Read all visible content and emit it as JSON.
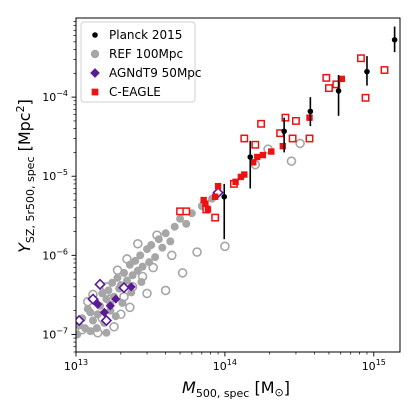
{
  "chart_data": {
    "type": "scatter",
    "xlabel": {
      "main": "M",
      "sub": "500, spec",
      "unit": " [M",
      "unit_sub": "⊙",
      "close": "]"
    },
    "ylabel": {
      "main": "Y",
      "sub": "SZ, 5r500, spec",
      "unit": " [Mpc",
      "sup": "2",
      "close": "]"
    },
    "xscale": "log",
    "yscale": "log",
    "xlim": [
      10000000000000.0,
      1500000000000000.0
    ],
    "ylim": [
      6e-08,
      0.001
    ],
    "x_ticks": [
      {
        "value": 10000000000000.0,
        "base": "10",
        "exp": "13"
      },
      {
        "value": 100000000000000.0,
        "base": "10",
        "exp": "14"
      },
      {
        "value": 1000000000000000.0,
        "base": "10",
        "exp": "15"
      }
    ],
    "y_ticks": [
      {
        "value": 1e-07,
        "base": "10",
        "exp": "−7"
      },
      {
        "value": 1e-06,
        "base": "10",
        "exp": "−6"
      },
      {
        "value": 1e-05,
        "base": "10",
        "exp": "−5"
      },
      {
        "value": 0.0001,
        "base": "10",
        "exp": "−4"
      }
    ],
    "legend_position": "top-left",
    "series": [
      {
        "name": "REF 100Mpc",
        "color": "#a6a6a6",
        "marker": "circle",
        "filled": [
          [
            10200000000000.0,
            1e-07
          ],
          [
            10500000000000.0,
            1.3e-07
          ],
          [
            11000000000000.0,
            1.6e-07
          ],
          [
            11500000000000.0,
            1.2e-07
          ],
          [
            12000000000000.0,
            2.1e-07
          ],
          [
            12500000000000.0,
            1.1e-07
          ],
          [
            13000000000000.0,
            1.5e-07
          ],
          [
            13500000000000.0,
            2.6e-07
          ],
          [
            14000000000000.0,
            1.8e-07
          ],
          [
            14500000000000.0,
            2.3e-07
          ],
          [
            15000000000000.0,
            3.3e-07
          ],
          [
            15500000000000.0,
            1.4e-07
          ],
          [
            16000000000000.0,
            2.8e-07
          ],
          [
            16500000000000.0,
            3.6e-07
          ],
          [
            17000000000000.0,
            2e-07
          ],
          [
            17500000000000.0,
            4.5e-07
          ],
          [
            18000000000000.0,
            3e-07
          ],
          [
            18500000000000.0,
            1.7e-07
          ],
          [
            19000000000000.0,
            5.2e-07
          ],
          [
            19500000000000.0,
            3.8e-07
          ],
          [
            20000000000000.0,
            4.2e-07
          ],
          [
            20500000000000.0,
            2.5e-07
          ],
          [
            21000000000000.0,
            6e-07
          ],
          [
            22000000000000.0,
            4.8e-07
          ],
          [
            23000000000000.0,
            7.6e-07
          ],
          [
            23500000000000.0,
            3.4e-07
          ],
          [
            24000000000000.0,
            5.6e-07
          ],
          [
            25000000000000.0,
            8.5e-07
          ],
          [
            26000000000000.0,
            6.4e-07
          ],
          [
            27000000000000.0,
            1e-06
          ],
          [
            27500000000000.0,
            4.6e-07
          ],
          [
            28000000000000.0,
            7.2e-07
          ],
          [
            30000000000000.0,
            1.2e-06
          ],
          [
            31000000000000.0,
            8.2e-07
          ],
          [
            32000000000000.0,
            1.35e-06
          ],
          [
            34000000000000.0,
            9.5e-07
          ],
          [
            36000000000000.0,
            1.6e-06
          ],
          [
            38000000000000.0,
            1.25e-06
          ],
          [
            40000000000000.0,
            1.9e-06
          ],
          [
            43000000000000.0,
            1.5e-06
          ],
          [
            46000000000000.0,
            2.3e-06
          ],
          [
            50000000000000.0,
            2.9e-06
          ],
          [
            55000000000000.0,
            2.5e-06
          ],
          [
            60000000000000.0,
            3.4e-06
          ],
          [
            70000000000000.0,
            4.2e-06
          ],
          [
            82000000000000.0,
            5.2e-06
          ],
          [
            12500000000000.0,
            1.9e-07
          ],
          [
            13800000000000.0,
            1.2e-07
          ],
          [
            16000000000000.0,
            1.05e-07
          ],
          [
            17000000000000.0,
            2.4e-07
          ]
        ],
        "open": [
          [
            10000000000000.0,
            1.4e-07
          ],
          [
            11000000000000.0,
            1.15e-07
          ],
          [
            12000000000000.0,
            2.6e-07
          ],
          [
            13000000000000.0,
            3.2e-07
          ],
          [
            14000000000000.0,
            1.05e-07
          ],
          [
            15000000000000.0,
            1.6e-07
          ],
          [
            16000000000000.0,
            4e-07
          ],
          [
            17000000000000.0,
            2.8e-07
          ],
          [
            18000000000000.0,
            1.25e-07
          ],
          [
            19000000000000.0,
            6.5e-07
          ],
          [
            20000000000000.0,
            1.8e-07
          ],
          [
            21000000000000.0,
            3e-07
          ],
          [
            22000000000000.0,
            9e-07
          ],
          [
            23000000000000.0,
            2.2e-07
          ],
          [
            24000000000000.0,
            4e-07
          ],
          [
            26000000000000.0,
            1.4e-06
          ],
          [
            28000000000000.0,
            5.4e-07
          ],
          [
            30000000000000.0,
            3.3e-07
          ],
          [
            33000000000000.0,
            7e-07
          ],
          [
            35000000000000.0,
            1.8e-06
          ],
          [
            40000000000000.0,
            3.6e-07
          ],
          [
            44000000000000.0,
            1e-06
          ],
          [
            52000000000000.0,
            6e-07
          ],
          [
            65000000000000.0,
            1.1e-06
          ],
          [
            100000000000000.0,
            1.3e-06
          ],
          [
            160000000000000.0,
            1.4e-05
          ],
          [
            195000000000000.0,
            2.2e-05
          ],
          [
            280000000000000.0,
            1.55e-05
          ],
          [
            320000000000000.0,
            2.6e-05
          ]
        ]
      },
      {
        "name": "AGNdT9 50Mpc",
        "color": "#5b1a94",
        "marker": "diamond",
        "filled": [
          [
            18500000000000.0,
            2.8e-07
          ],
          [
            15500000000000.0,
            1.9e-07
          ],
          [
            14000000000000.0,
            2.4e-07
          ],
          [
            17000000000000.0,
            2.3e-07
          ],
          [
            23500000000000.0,
            4e-07
          ]
        ],
        "open": [
          [
            14500000000000.0,
            4.3e-07
          ],
          [
            13000000000000.0,
            2.8e-07
          ],
          [
            16000000000000.0,
            1.5e-07
          ],
          [
            21000000000000.0,
            3.9e-07
          ],
          [
            10500000000000.0,
            1.5e-07
          ],
          [
            90000000000000.0,
            6.2e-06
          ]
        ]
      },
      {
        "name": "C-EAGLE",
        "color": "#ee1111",
        "marker": "square",
        "filled": [
          [
            72000000000000.0,
            5e-06
          ],
          [
            74000000000000.0,
            4.5e-06
          ],
          [
            77000000000000.0,
            3.8e-06
          ],
          [
            86000000000000.0,
            5.5e-06
          ],
          [
            90000000000000.0,
            7.5e-06
          ],
          [
            118000000000000.0,
            8.5e-06
          ],
          [
            128000000000000.0,
            9.8e-06
          ],
          [
            135000000000000.0,
            1.05e-05
          ],
          [
            155000000000000.0,
            1.5e-05
          ],
          [
            165000000000000.0,
            1.75e-05
          ],
          [
            180000000000000.0,
            1.85e-05
          ],
          [
            205000000000000.0,
            2.05e-05
          ],
          [
            245000000000000.0,
            2.4e-05
          ],
          [
            370000000000000.0,
            5.5e-05
          ],
          [
            610000000000000.0,
            0.00017
          ]
        ],
        "open": [
          [
            50000000000000.0,
            3.6e-06
          ],
          [
            55000000000000.0,
            3.6e-06
          ],
          [
            75000000000000.0,
            3.8e-06
          ],
          [
            86000000000000.0,
            3e-06
          ],
          [
            115000000000000.0,
            8e-06
          ],
          [
            135000000000000.0,
            3e-05
          ],
          [
            160000000000000.0,
            2.5e-05
          ],
          [
            175000000000000.0,
            4.6e-05
          ],
          [
            235000000000000.0,
            3.5e-05
          ],
          [
            255000000000000.0,
            5.5e-05
          ],
          [
            285000000000000.0,
            3e-05
          ],
          [
            300000000000000.0,
            5e-05
          ],
          [
            370000000000000.0,
            3e-05
          ],
          [
            480000000000000.0,
            0.000175
          ],
          [
            500000000000000.0,
            0.00013
          ],
          [
            560000000000000.0,
            0.000145
          ],
          [
            820000000000000.0,
            0.00031
          ],
          [
            880000000000000.0,
            9.8e-05
          ],
          [
            1180000000000000.0,
            0.00022
          ]
        ]
      },
      {
        "name": "Planck 2015",
        "color": "#000000",
        "marker": "point",
        "points": [
          {
            "x": 99000000000000.0,
            "y": 5.5e-06,
            "ylo": 1.6e-06,
            "yhi": 8e-06
          },
          {
            "x": 148000000000000.0,
            "y": 1.75e-05,
            "ylo": 7e-06,
            "yhi": 2.8e-05
          },
          {
            "x": 250000000000000.0,
            "y": 3.7e-05,
            "ylo": 2e-05,
            "yhi": 5.5e-05
          },
          {
            "x": 375000000000000.0,
            "y": 6.6e-05,
            "ylo": 4.3e-05,
            "yhi": 0.0001
          },
          {
            "x": 580000000000000.0,
            "y": 0.00012,
            "ylo": 5.8e-05,
            "yhi": 0.00019
          },
          {
            "x": 900000000000000.0,
            "y": 0.00021,
            "ylo": 0.00014,
            "yhi": 0.00033
          },
          {
            "x": 1380000000000000.0,
            "y": 0.00053,
            "ylo": 0.00037,
            "yhi": 0.00078
          }
        ]
      }
    ],
    "legend": [
      {
        "label": "Planck 2015",
        "color": "#000000",
        "marker": "point"
      },
      {
        "label": "REF 100Mpc",
        "color": "#a6a6a6",
        "marker": "circle"
      },
      {
        "label": "AGNdT9 50Mpc",
        "color": "#5b1a94",
        "marker": "diamond"
      },
      {
        "label": "C-EAGLE",
        "color": "#ee1111",
        "marker": "square"
      }
    ]
  }
}
